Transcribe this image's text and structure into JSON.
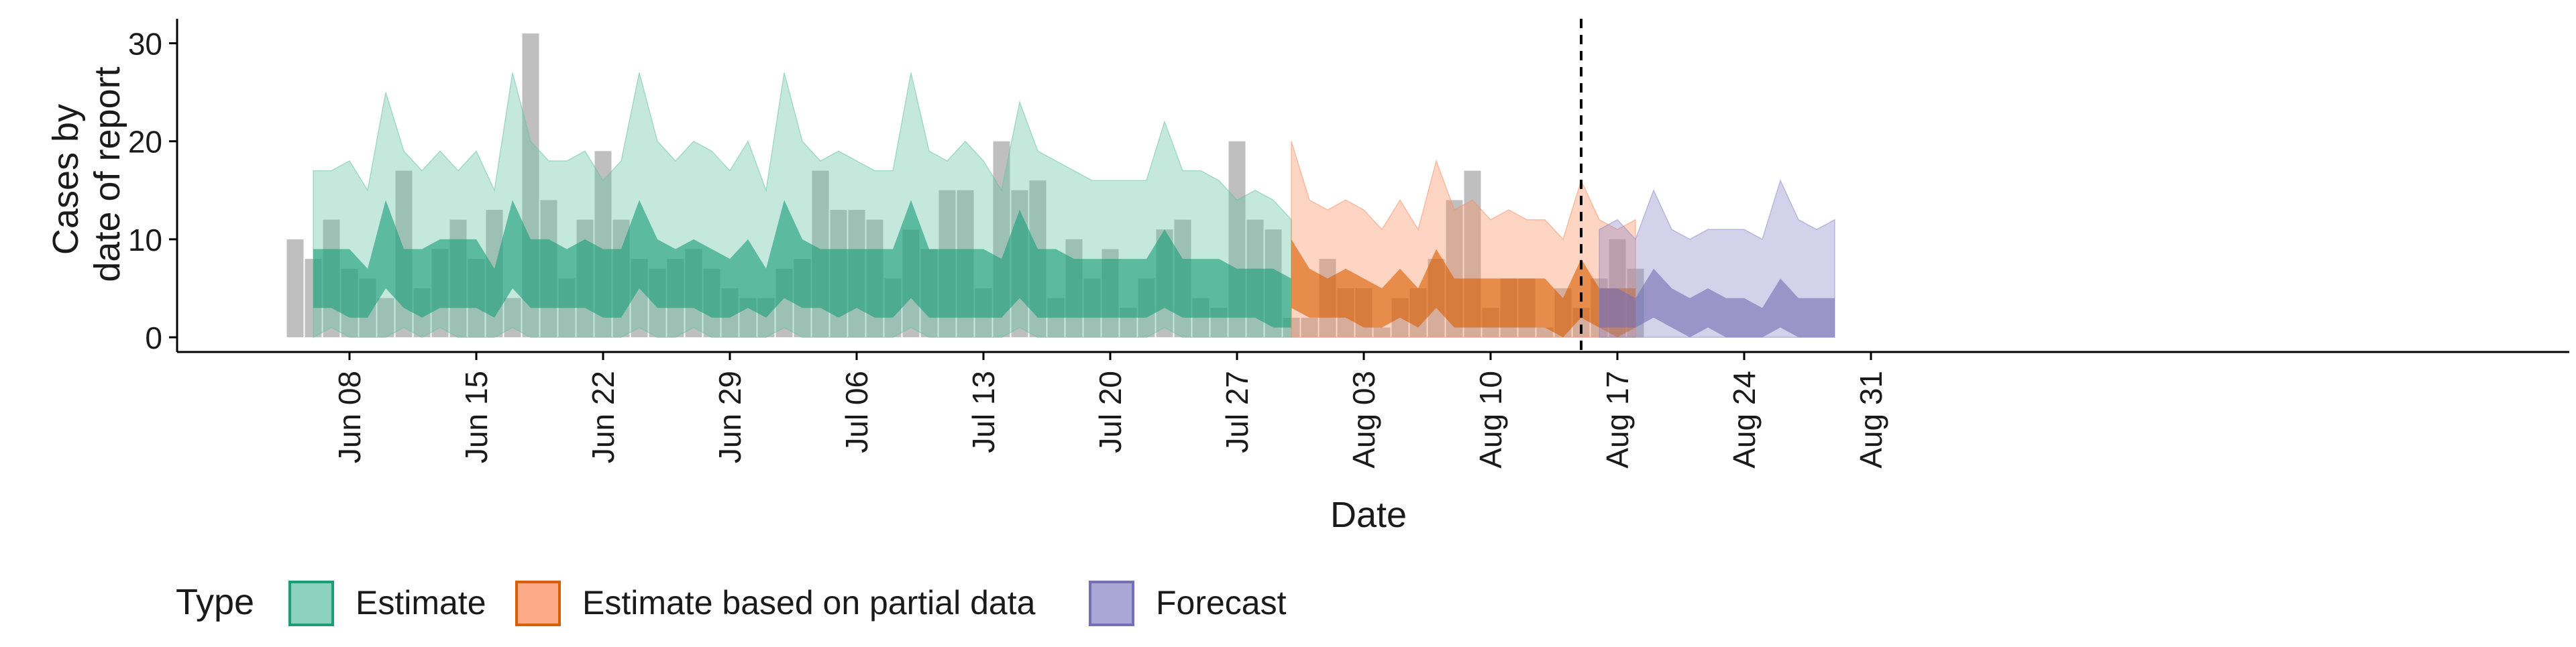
{
  "chart_data": {
    "type": "area",
    "xlabel": "Date",
    "ylabel": [
      "Cases by",
      "date of report"
    ],
    "x_start": "2020-06-05",
    "xlim": [
      "2020-06-01",
      "2020-09-01"
    ],
    "ylim": [
      -1.5,
      32.5
    ],
    "y_ticks": [
      0,
      10,
      20,
      30
    ],
    "x_ticks": [
      {
        "label": "Jun 08",
        "date": "2020-06-08"
      },
      {
        "label": "Jun 15",
        "date": "2020-06-15"
      },
      {
        "label": "Jun 22",
        "date": "2020-06-22"
      },
      {
        "label": "Jun 29",
        "date": "2020-06-29"
      },
      {
        "label": "Jul 06",
        "date": "2020-07-06"
      },
      {
        "label": "Jul 13",
        "date": "2020-07-13"
      },
      {
        "label": "Jul 20",
        "date": "2020-07-20"
      },
      {
        "label": "Jul 27",
        "date": "2020-07-27"
      },
      {
        "label": "Aug 03",
        "date": "2020-08-03"
      },
      {
        "label": "Aug 10",
        "date": "2020-08-10"
      },
      {
        "label": "Aug 17",
        "date": "2020-08-17"
      },
      {
        "label": "Aug 24",
        "date": "2020-08-24"
      },
      {
        "label": "Aug 31",
        "date": "2020-08-31"
      }
    ],
    "vline_date": "2020-08-15",
    "observed_cases": [
      10,
      8,
      12,
      7,
      6,
      4,
      17,
      5,
      9,
      12,
      8,
      13,
      4,
      31,
      14,
      6,
      12,
      19,
      12,
      8,
      7,
      8,
      9,
      7,
      5,
      4,
      4,
      7,
      8,
      17,
      13,
      13,
      12,
      6,
      11,
      9,
      15,
      15,
      5,
      20,
      15,
      16,
      4,
      10,
      6,
      9,
      3,
      6,
      11,
      12,
      4,
      3,
      20,
      12,
      11,
      2,
      2,
      8,
      5,
      5,
      1,
      4,
      5,
      8,
      14,
      17,
      3,
      6,
      6,
      1,
      5,
      3,
      6,
      10,
      7
    ],
    "series": [
      {
        "name": "Estimate",
        "color": "#1b9e77",
        "fill_color": "#66c2a5",
        "start_date": "2020-06-06",
        "outer_upper": [
          17,
          17,
          18,
          15,
          25,
          19,
          17,
          19,
          17,
          19,
          15,
          27,
          20,
          18,
          18,
          19,
          16,
          18,
          27,
          20,
          18,
          20,
          19,
          17,
          20,
          15,
          27,
          20,
          18,
          19,
          18,
          17,
          17,
          27,
          19,
          18,
          20,
          18,
          15,
          24,
          19,
          18,
          17,
          16,
          16,
          16,
          16,
          22,
          17,
          17,
          16,
          14,
          15,
          14,
          12
        ],
        "outer_lower": [
          0,
          1,
          0,
          0,
          0,
          1,
          0,
          1,
          0,
          0,
          0,
          1,
          0,
          0,
          0,
          0,
          0,
          0,
          1,
          0,
          0,
          1,
          0,
          0,
          0,
          0,
          1,
          0,
          0,
          0,
          0,
          0,
          0,
          1,
          0,
          0,
          0,
          0,
          0,
          1,
          0,
          0,
          0,
          0,
          0,
          0,
          0,
          1,
          0,
          0,
          0,
          0,
          0,
          0,
          0
        ],
        "inner_upper": [
          9,
          9,
          9,
          7,
          14,
          9,
          9,
          10,
          10,
          10,
          7,
          14,
          10,
          10,
          9,
          10,
          9,
          9,
          14,
          10,
          9,
          10,
          9,
          8,
          10,
          7,
          14,
          10,
          9,
          9,
          9,
          9,
          9,
          14,
          9,
          9,
          9,
          9,
          8,
          13,
          9,
          9,
          8,
          8,
          8,
          8,
          8,
          11,
          8,
          8,
          8,
          7,
          7,
          7,
          6
        ],
        "inner_lower": [
          3,
          3,
          2,
          2,
          5,
          3,
          2,
          3,
          3,
          3,
          2,
          5,
          3,
          3,
          3,
          3,
          2,
          2,
          5,
          3,
          3,
          3,
          2,
          2,
          3,
          2,
          4,
          3,
          3,
          2,
          3,
          2,
          2,
          4,
          2,
          2,
          2,
          2,
          2,
          4,
          2,
          2,
          2,
          2,
          2,
          2,
          2,
          3,
          2,
          2,
          2,
          2,
          2,
          1,
          1
        ]
      },
      {
        "name": "Estimate based on partial data",
        "color": "#d95f02",
        "fill_color": "#fc8d62",
        "start_date": "2020-07-30",
        "outer_upper": [
          20,
          14,
          13,
          14,
          13,
          11,
          14,
          11,
          18,
          13,
          14,
          12,
          13,
          12,
          12,
          10,
          16,
          12,
          11,
          12
        ],
        "outer_lower": [
          0,
          0,
          0,
          0,
          0,
          0,
          0,
          0,
          0,
          0,
          0,
          0,
          0,
          0,
          0,
          0,
          0,
          0,
          0,
          0
        ],
        "inner_upper": [
          10,
          7,
          6,
          7,
          6,
          5,
          7,
          5,
          9,
          6,
          6,
          6,
          6,
          6,
          6,
          4,
          8,
          5,
          5,
          5
        ],
        "inner_lower": [
          3,
          2,
          2,
          2,
          1,
          1,
          2,
          1,
          3,
          1,
          1,
          1,
          1,
          1,
          1,
          0,
          2,
          1,
          0,
          1
        ]
      },
      {
        "name": "Forecast",
        "color": "#7570b3",
        "fill_color": "#8d88c8",
        "start_date": "2020-08-16",
        "outer_upper": [
          11,
          12,
          10,
          15,
          11,
          10,
          11,
          11,
          11,
          10,
          16,
          12,
          11,
          12
        ],
        "outer_lower": [
          0,
          0,
          0,
          0,
          0,
          0,
          0,
          0,
          0,
          0,
          0,
          0,
          0,
          0
        ],
        "inner_upper": [
          5,
          5,
          4,
          7,
          5,
          4,
          5,
          4,
          4,
          3,
          6,
          4,
          4,
          4
        ],
        "inner_lower": [
          1,
          1,
          1,
          2,
          1,
          0,
          1,
          0,
          0,
          0,
          1,
          0,
          0,
          0
        ]
      }
    ],
    "legend": {
      "title": "Type",
      "placement": "bottom",
      "entries": [
        "Estimate",
        "Estimate based on partial data",
        "Forecast"
      ]
    },
    "grid": false
  }
}
